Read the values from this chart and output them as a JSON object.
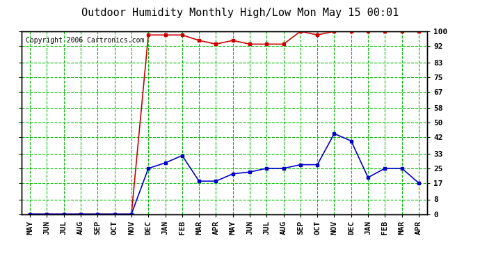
{
  "title": "Outdoor Humidity Monthly High/Low Mon May 15 00:01",
  "copyright": "Copyright 2006 Cartronics.com",
  "x_labels": [
    "MAY",
    "JUN",
    "JUL",
    "AUG",
    "SEP",
    "OCT",
    "NOV",
    "DEC",
    "JAN",
    "FEB",
    "MAR",
    "APR",
    "MAY",
    "JUN",
    "JUL",
    "AUG",
    "SEP",
    "OCT",
    "NOV",
    "DEC",
    "JAN",
    "FEB",
    "MAR",
    "APR"
  ],
  "high_values": [
    0,
    0,
    0,
    0,
    0,
    0,
    0,
    98,
    98,
    98,
    95,
    93,
    95,
    93,
    93,
    93,
    100,
    98,
    100,
    100,
    100,
    100,
    100,
    100
  ],
  "low_values": [
    0,
    0,
    0,
    0,
    0,
    0,
    0,
    25,
    28,
    32,
    18,
    18,
    22,
    23,
    25,
    25,
    27,
    27,
    44,
    40,
    20,
    25,
    25,
    17
  ],
  "high_color": "#cc0000",
  "low_color": "#0000cc",
  "bg_color": "#ffffff",
  "plot_bg_color": "#ffffff",
  "grid_color": "#00bb00",
  "yticks": [
    0,
    8,
    17,
    25,
    33,
    42,
    50,
    58,
    67,
    75,
    83,
    92,
    100
  ],
  "ymin": 0,
  "ymax": 100,
  "title_fontsize": 11,
  "axis_fontsize": 8,
  "copyright_fontsize": 7
}
